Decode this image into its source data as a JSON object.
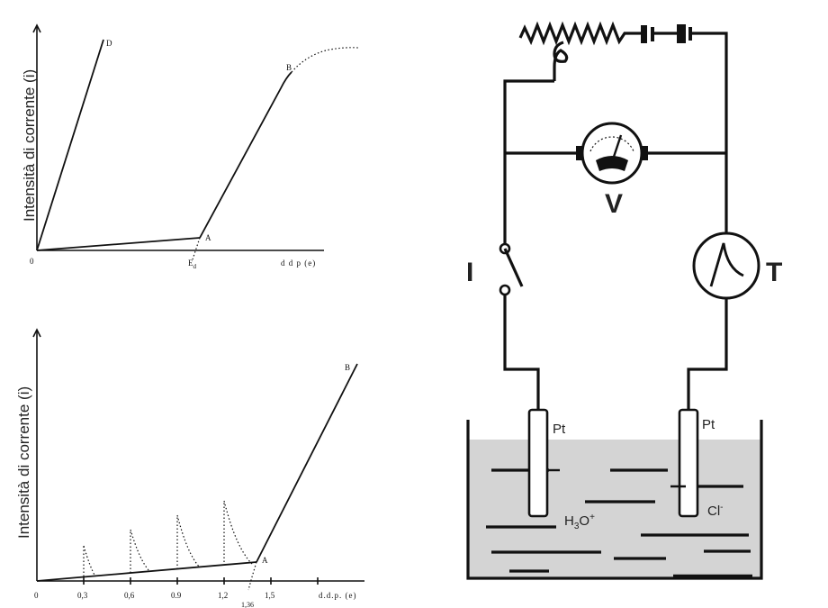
{
  "top_chart": {
    "ylabel": "Intensità di corrente (i)",
    "xlabel": "d d p (e)",
    "origin": "0",
    "point_d": "D",
    "point_b": "B",
    "point_a": "A",
    "ed_main": "E",
    "ed_sub": "d"
  },
  "bottom_chart": {
    "ylabel": "Intensità di corrente (i)",
    "xlabel": "d.d.p. (e)",
    "origin": "0",
    "ticks": [
      "0,3",
      "0,6",
      "0.9",
      "1,2",
      "1,5"
    ],
    "special_tick": "1,36",
    "point_a": "A",
    "point_b": "B"
  },
  "circuit": {
    "label_switch": "I",
    "label_voltmeter": "V",
    "label_galvanometer": "T",
    "electrode_left": "Pt",
    "electrode_right": "Pt",
    "ion_left_main": "H",
    "ion_left_sub": "3",
    "ion_left_rest": "O",
    "ion_left_sup": "+",
    "ion_right_main": "Cl",
    "ion_right_sup": "-"
  },
  "colors": {
    "ink": "#111111",
    "solution": "#d4d4d4",
    "background": "#ffffff"
  }
}
